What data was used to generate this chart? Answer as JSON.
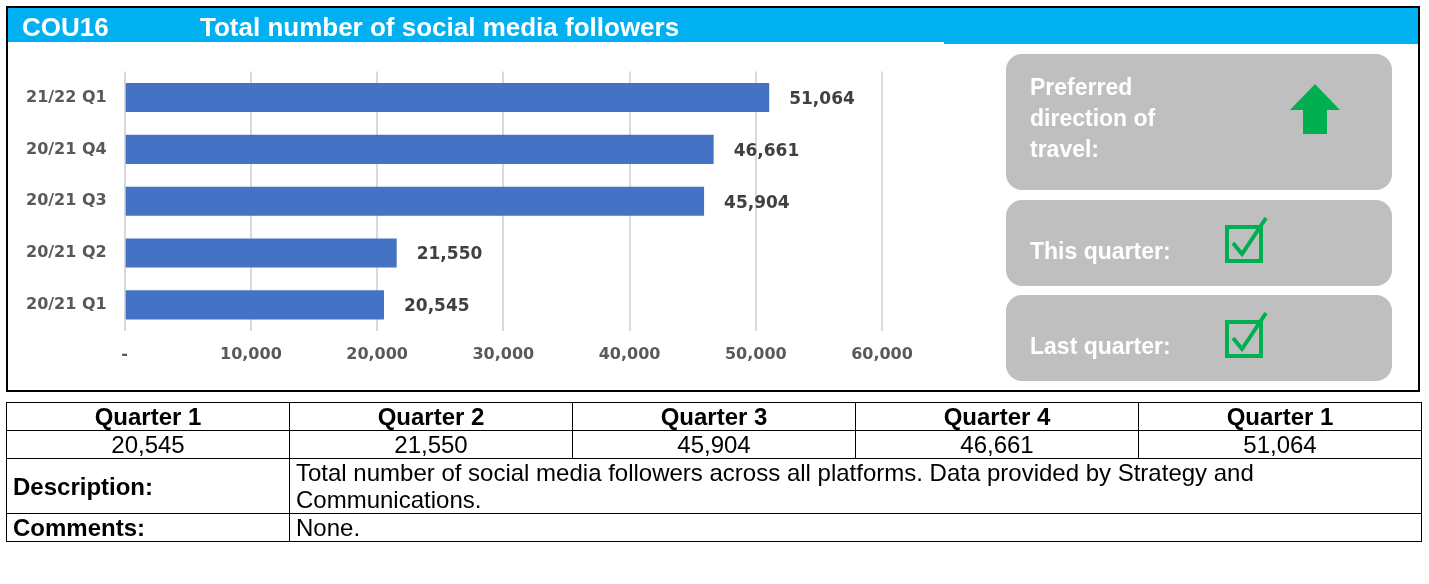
{
  "chart_data": {
    "type": "bar",
    "orientation": "horizontal",
    "title": "Total number of social media followers",
    "subtitle": "COU16",
    "categories": [
      "21/22 Q1",
      "20/21 Q4",
      "20/21 Q3",
      "20/21 Q2",
      "20/21 Q1"
    ],
    "values": [
      51064,
      46661,
      45904,
      21550,
      20545
    ],
    "value_labels": [
      "51,064",
      "46,661",
      "45,904",
      "21,550",
      "20,545"
    ],
    "color": "#4472c4",
    "xlim": [
      0,
      60000
    ],
    "xticks": [
      {
        "value": 0,
        "label": "-"
      },
      {
        "value": 10000,
        "label": "10,000"
      },
      {
        "value": 20000,
        "label": "20,000"
      },
      {
        "value": 30000,
        "label": "30,000"
      },
      {
        "value": 40000,
        "label": "40,000"
      },
      {
        "value": 50000,
        "label": "50,000"
      },
      {
        "value": 60000,
        "label": "60,000"
      }
    ],
    "grid": "x",
    "legend": false,
    "annotations": [
      "Preferred direction of travel:",
      "This quarter:",
      "Last quarter:",
      "Quarter 1",
      "Quarter 2",
      "Quarter 3",
      "Quarter 4",
      "Quarter 1",
      "Description:",
      "Total number of social media followers across all platforms. Data provided by Strategy and Communications.",
      "Comments:",
      "None."
    ]
  }
}
